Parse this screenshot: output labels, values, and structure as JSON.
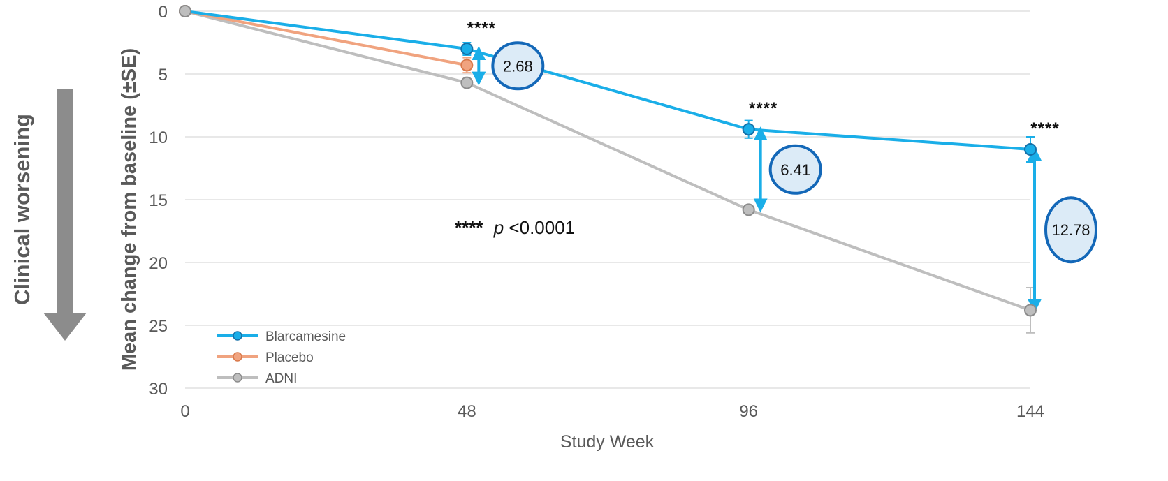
{
  "side_label": "Clinical worsening",
  "chart_data": {
    "type": "line",
    "xlabel": "Study Week",
    "ylabel": "Mean change from baseline (±SE)",
    "x": [
      0,
      48,
      96,
      144
    ],
    "xlim": [
      0,
      144
    ],
    "ylim": [
      0,
      30
    ],
    "y_inverted": true,
    "y_ticks": [
      0,
      5,
      10,
      15,
      20,
      25,
      30
    ],
    "x_ticks": [
      0,
      48,
      96,
      144
    ],
    "grid": true,
    "legend_position": "bottom-left",
    "series": [
      {
        "name": "Blarcamesine",
        "color": "#1AAEE8",
        "values": [
          0,
          3.0,
          9.4,
          11.0
        ],
        "se": [
          0,
          0.5,
          0.7,
          1.0
        ]
      },
      {
        "name": "Placebo",
        "color": "#F0A37F",
        "values": [
          0,
          4.3,
          null,
          null
        ],
        "se": [
          0,
          0.6,
          null,
          null
        ]
      },
      {
        "name": "ADNI",
        "color": "#BEBEBE",
        "values": [
          0,
          5.7,
          15.8,
          23.8
        ],
        "se": [
          0,
          0,
          0,
          1.8
        ]
      }
    ],
    "differences": [
      {
        "x": 48,
        "label": "2.68"
      },
      {
        "x": 96,
        "label": "6.41"
      },
      {
        "x": 144,
        "label": "12.78"
      }
    ],
    "significance_marks": [
      {
        "x": 48,
        "label": "****"
      },
      {
        "x": 96,
        "label": "****"
      },
      {
        "x": 144,
        "label": "****"
      }
    ],
    "p_note": {
      "stars": "****",
      "p": "p",
      "rest": "<0.0001"
    }
  }
}
